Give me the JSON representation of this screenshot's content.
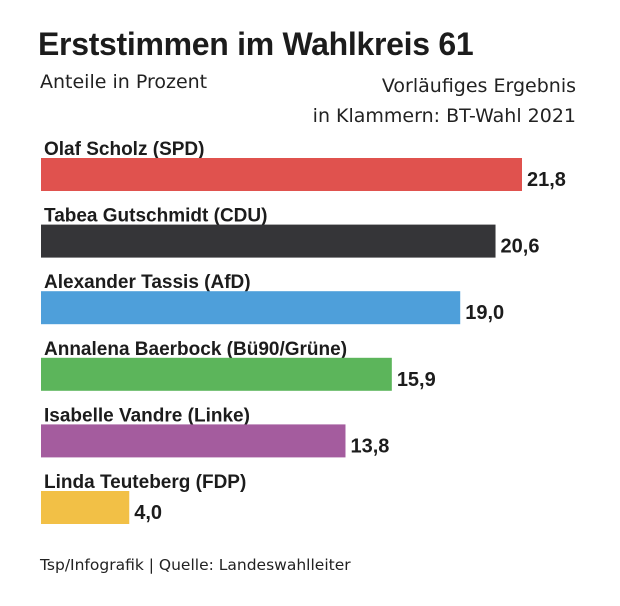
{
  "chart_data": {
    "type": "bar",
    "orientation": "horizontal",
    "title": "Erststimmen im Wahlkreis 61",
    "subtitle": "Anteile in Prozent",
    "note_lines": [
      "Vorläufiges Ergebnis",
      "in Klammern: BT-Wahl 2021"
    ],
    "categories": [
      "Olaf Scholz (SPD)",
      "Tabea Gutschmidt (CDU)",
      "Alexander Tassis (AfD)",
      "Annalena Baerbock (Bü90/Grüne)",
      "Isabelle Vandre (Linke)",
      "Linda Teuteberg (FDP)"
    ],
    "values": [
      21.8,
      20.6,
      19.0,
      15.9,
      13.8,
      4.0
    ],
    "value_labels": [
      "21,8",
      "20,6",
      "19,0",
      "15,9",
      "13,8",
      "4,0"
    ],
    "colors": [
      "#e0524e",
      "#353538",
      "#4e9fda",
      "#5cb55b",
      "#a45c9e",
      "#f2c046"
    ],
    "xlim": [
      0,
      21.8
    ],
    "grid": false,
    "legend": "none"
  },
  "footer": {
    "source": "Tsp/Infografik | Quelle: Landeswahlleiter"
  }
}
